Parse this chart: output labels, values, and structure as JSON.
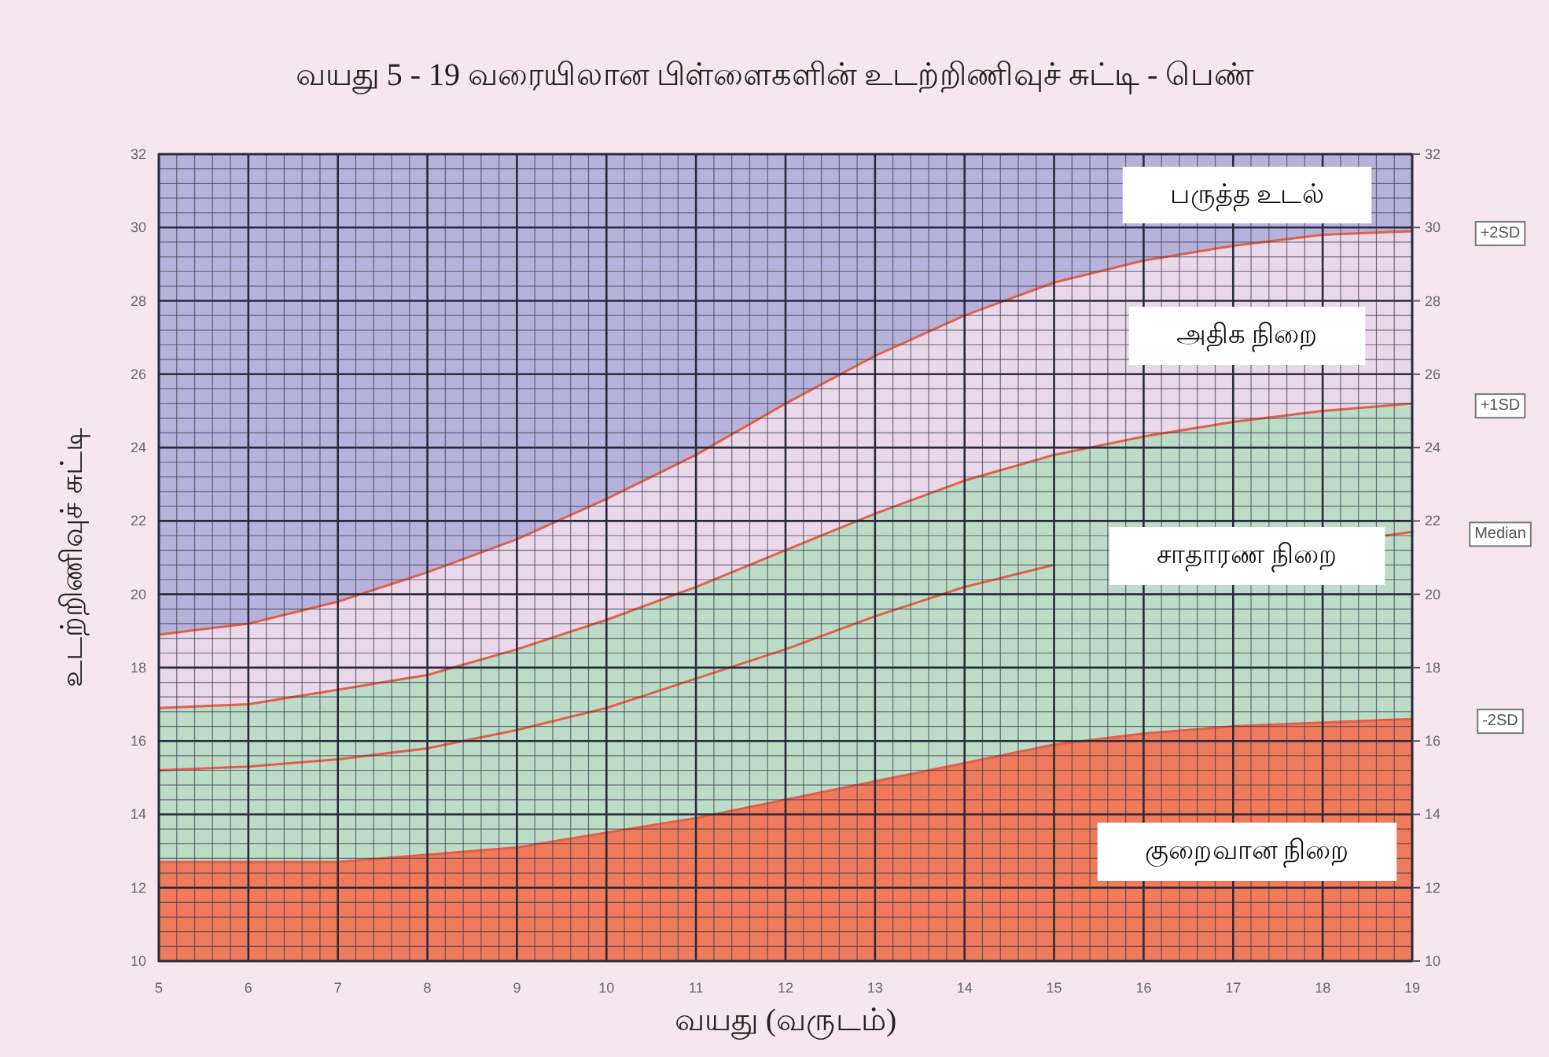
{
  "chart_data": {
    "type": "area",
    "title": "வயது 5 - 19 வரையிலான பிள்ளைகளின் உடற்றிணிவுச் சுட்டி - பெண்",
    "xlabel": "வயது (வருடம்)",
    "ylabel": "உடற்றிணிவுச் சுட்டி",
    "x": [
      5,
      6,
      7,
      8,
      9,
      10,
      11,
      12,
      13,
      14,
      15,
      16,
      17,
      18,
      19
    ],
    "series": [
      {
        "name": "+2SD",
        "color": "#e8d8ea",
        "values": [
          18.9,
          19.2,
          19.8,
          20.6,
          21.5,
          22.6,
          23.8,
          25.2,
          26.5,
          27.6,
          28.5,
          29.1,
          29.5,
          29.8,
          29.9
        ]
      },
      {
        "name": "+1SD",
        "color": "#bcdcc8",
        "values": [
          16.9,
          17.0,
          17.4,
          17.8,
          18.5,
          19.3,
          20.2,
          21.2,
          22.2,
          23.1,
          23.8,
          24.3,
          24.7,
          25.0,
          25.2
        ]
      },
      {
        "name": "Median",
        "type": "line",
        "color": "#e2604a",
        "x": [
          5,
          6,
          7,
          8,
          9,
          10,
          11,
          12,
          13,
          14,
          15,
          18.7,
          19
        ],
        "values": [
          15.2,
          15.3,
          15.5,
          15.8,
          16.3,
          16.9,
          17.7,
          18.5,
          19.4,
          20.2,
          20.8,
          21.6,
          21.7
        ]
      },
      {
        "name": "-2SD",
        "color": "#ef7a5c",
        "values": [
          12.7,
          12.7,
          12.7,
          12.9,
          13.1,
          13.5,
          13.9,
          14.4,
          14.9,
          15.4,
          15.9,
          16.2,
          16.4,
          16.5,
          16.6
        ]
      }
    ],
    "annotations": [
      "பருத்த உடல்",
      "அதிக நிறை",
      "சாதாரண நிறை",
      "குறைவான நிறை"
    ],
    "xlim": [
      5,
      19
    ],
    "xticks": [
      5,
      6,
      7,
      8,
      9,
      10,
      11,
      12,
      13,
      14,
      15,
      16,
      17,
      18,
      19
    ],
    "ylim": [
      10,
      32
    ],
    "yticks": [
      10,
      12,
      14,
      16,
      18,
      20,
      22,
      24,
      26,
      28,
      30,
      32
    ],
    "y2lim": [
      10,
      32
    ],
    "y2ticks": [
      10,
      12,
      14,
      16,
      18,
      20,
      22,
      24,
      26,
      28,
      30,
      32
    ],
    "grid": true,
    "legend": false
  }
}
